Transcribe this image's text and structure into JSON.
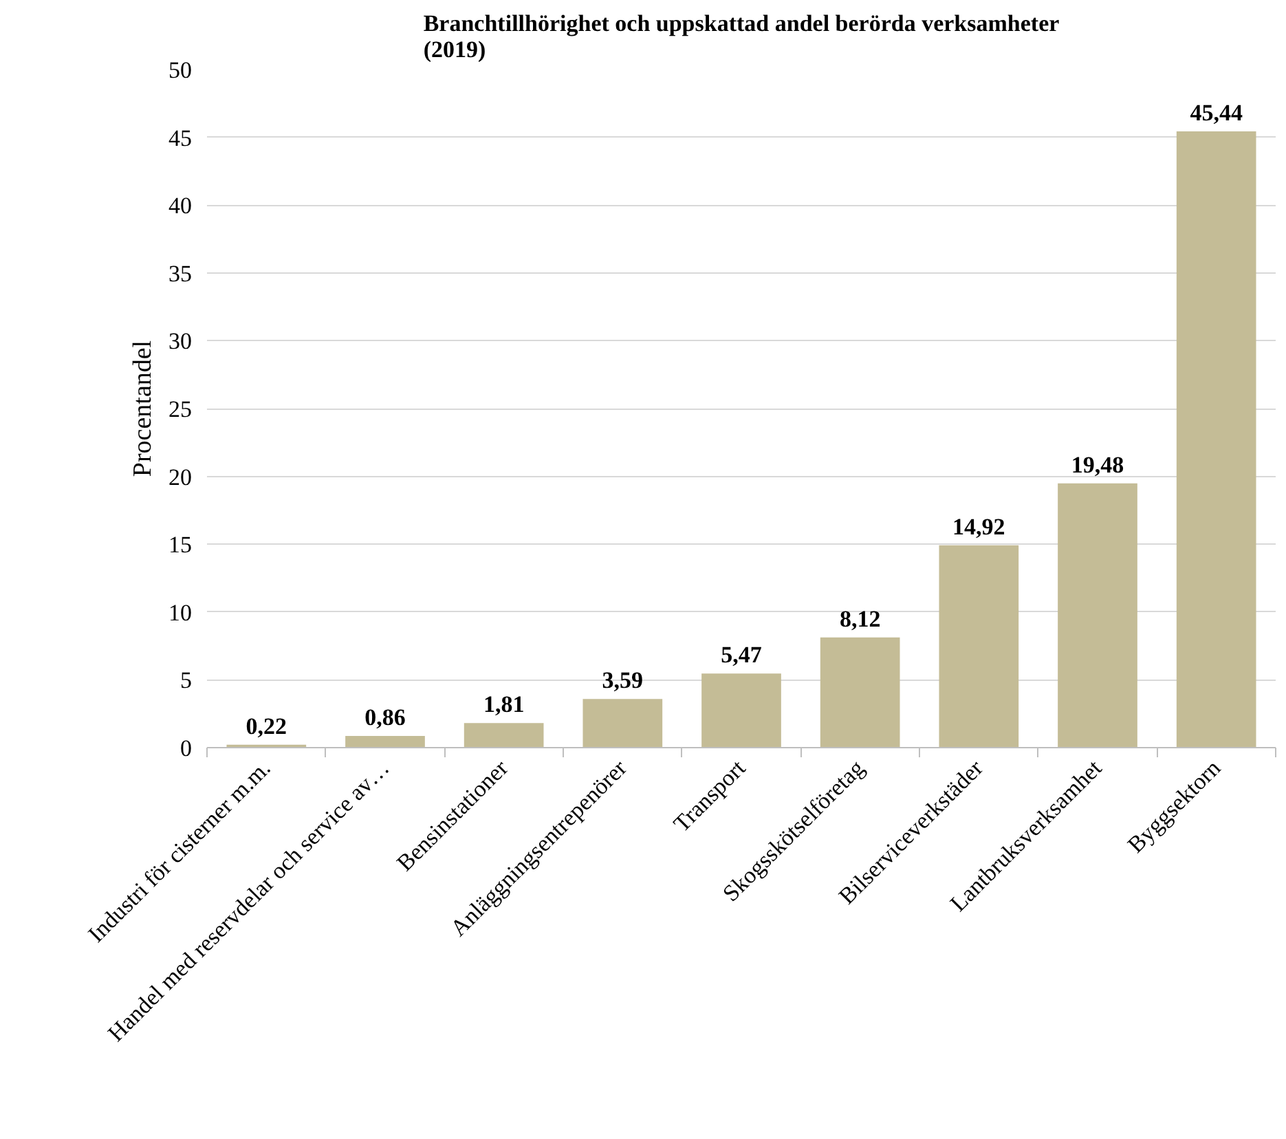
{
  "chart_data": {
    "type": "bar",
    "title": "Branchtillhörighet och uppskattad andel berörda verksamheter\n(2019)",
    "ylabel": "Procentandel",
    "categories": [
      "Industri för cisterner m.m.",
      "Handel med reservdelar och service av…",
      "Bensinstationer",
      "Anläggningsentrepenörer",
      "Transport",
      "Skogsskötselföretag",
      "Bilserviceverkstäder",
      "Lantbruksverksamhet",
      "Byggsektorn"
    ],
    "values": [
      0.22,
      0.86,
      1.81,
      3.59,
      5.47,
      8.12,
      14.92,
      19.48,
      45.44
    ],
    "color": "#c4bc96",
    "ylim": [
      0,
      50
    ],
    "yticks": [
      0,
      5,
      10,
      15,
      20,
      25,
      30,
      35,
      40,
      45,
      50
    ],
    "grid": "y",
    "value_labels": [
      "0,22",
      "0,86",
      "1,81",
      "3,59",
      "5,47",
      "8,12",
      "14,92",
      "19,48",
      "45,44"
    ]
  }
}
